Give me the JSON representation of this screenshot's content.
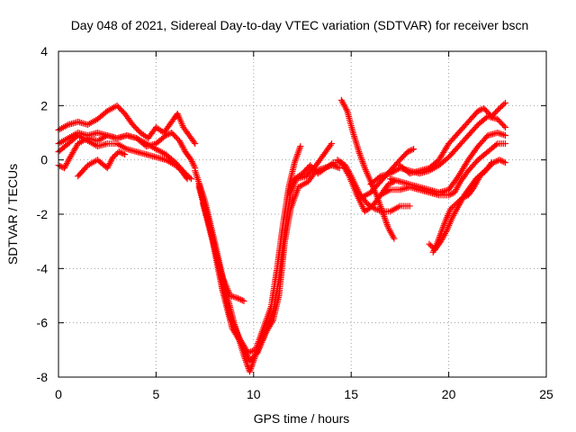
{
  "chart_data": {
    "type": "scatter",
    "title": "Day 048 of 2021, Sidereal Day-to-day VTEC variation (SDTVAR) for receiver bscn",
    "xlabel": "GPS time / hours",
    "ylabel": "SDTVAR / TECUs",
    "xlim": [
      0,
      25
    ],
    "ylim": [
      -8,
      4
    ],
    "xticks": [
      "0",
      "5",
      "10",
      "15",
      "20",
      "25"
    ],
    "yticks": [
      "-8",
      "-6",
      "-4",
      "-2",
      "0",
      "2",
      "4"
    ],
    "grid": true,
    "legend": "none",
    "marker": "+",
    "color": "#ff0000",
    "series": [
      {
        "points": [
          [
            0,
            1.1
          ],
          [
            0.5,
            1.3
          ],
          [
            1,
            1.4
          ],
          [
            1.5,
            1.3
          ],
          [
            2,
            1.5
          ],
          [
            2.5,
            1.8
          ],
          [
            3,
            2.0
          ],
          [
            3.4,
            1.7
          ],
          [
            3.8,
            1.3
          ],
          [
            4.2,
            1.0
          ],
          [
            4.6,
            0.8
          ],
          [
            5,
            1.2
          ],
          [
            5.4,
            1.0
          ],
          [
            5.8,
            1.4
          ],
          [
            6.1,
            1.7
          ],
          [
            6.4,
            1.2
          ],
          [
            6.8,
            0.8
          ],
          [
            7.0,
            0.6
          ]
        ]
      },
      {
        "points": [
          [
            0,
            0.6
          ],
          [
            0.5,
            0.8
          ],
          [
            1,
            1.0
          ],
          [
            1.5,
            0.9
          ],
          [
            2,
            1.0
          ],
          [
            2.5,
            0.9
          ],
          [
            3,
            0.8
          ],
          [
            3.5,
            0.9
          ],
          [
            4,
            0.8
          ],
          [
            4.5,
            0.5
          ],
          [
            5,
            0.6
          ],
          [
            5.5,
            0.9
          ],
          [
            5.8,
            1.0
          ],
          [
            6.2,
            0.7
          ],
          [
            6.5,
            0.3
          ],
          [
            6.8,
            0.0
          ],
          [
            7.0,
            -0.3
          ]
        ]
      },
      {
        "points": [
          [
            0,
            0.3
          ],
          [
            0.5,
            0.6
          ],
          [
            1,
            0.9
          ],
          [
            1.5,
            0.7
          ],
          [
            2,
            0.5
          ],
          [
            2.5,
            0.6
          ],
          [
            3,
            0.6
          ],
          [
            3.5,
            0.4
          ],
          [
            4,
            0.3
          ],
          [
            4.5,
            0.2
          ],
          [
            5,
            0.1
          ],
          [
            5.5,
            0.0
          ],
          [
            6,
            -0.2
          ],
          [
            6.3,
            -0.4
          ],
          [
            6.6,
            -0.7
          ]
        ]
      },
      {
        "points": [
          [
            0,
            -0.2
          ],
          [
            0.3,
            -0.3
          ],
          [
            0.6,
            0.1
          ],
          [
            1.0,
            0.6
          ],
          [
            1.5,
            0.8
          ],
          [
            2,
            0.7
          ],
          [
            2.5,
            0.9
          ],
          [
            3.0,
            0.8
          ],
          [
            3.5,
            0.9
          ],
          [
            4.0,
            0.8
          ],
          [
            4.5,
            0.6
          ],
          [
            5.0,
            0.4
          ],
          [
            5.5,
            0.2
          ],
          [
            6.0,
            -0.1
          ],
          [
            6.5,
            -0.5
          ],
          [
            6.8,
            -0.7
          ]
        ]
      },
      {
        "points": [
          [
            1,
            -0.6
          ],
          [
            1.5,
            -0.2
          ],
          [
            2,
            0.0
          ],
          [
            2.5,
            -0.3
          ],
          [
            2.8,
            0.1
          ],
          [
            3.1,
            0.3
          ],
          [
            3.4,
            0.2
          ]
        ]
      },
      {
        "points": [
          [
            7.0,
            -0.4
          ],
          [
            7.5,
            -1.5
          ],
          [
            8.0,
            -3.0
          ],
          [
            8.5,
            -4.6
          ],
          [
            9.0,
            -6.0
          ],
          [
            9.5,
            -7.2
          ],
          [
            9.8,
            -7.8
          ],
          [
            10.1,
            -7.2
          ],
          [
            10.5,
            -6.6
          ],
          [
            11.0,
            -5.6
          ],
          [
            11.3,
            -4.4
          ],
          [
            11.6,
            -2.6
          ],
          [
            11.9,
            -1.2
          ],
          [
            12.2,
            -0.7
          ],
          [
            12.7,
            -0.6
          ],
          [
            13.2,
            -0.2
          ],
          [
            13.6,
            0.2
          ],
          [
            14.0,
            0.6
          ]
        ]
      },
      {
        "points": [
          [
            7.2,
            -0.9
          ],
          [
            7.6,
            -2.0
          ],
          [
            8.0,
            -3.2
          ],
          [
            8.4,
            -4.3
          ],
          [
            8.8,
            -5.0
          ],
          [
            9.2,
            -5.1
          ],
          [
            9.5,
            -5.2
          ]
        ]
      },
      {
        "points": [
          [
            7.2,
            -1.0
          ],
          [
            7.8,
            -2.6
          ],
          [
            8.3,
            -4.2
          ],
          [
            8.8,
            -5.8
          ],
          [
            9.3,
            -6.6
          ],
          [
            9.7,
            -7.1
          ],
          [
            10.1,
            -7.0
          ],
          [
            10.5,
            -6.2
          ],
          [
            10.9,
            -5.4
          ],
          [
            11.2,
            -4.0
          ],
          [
            11.5,
            -2.4
          ],
          [
            11.8,
            -1.0
          ],
          [
            12.1,
            -0.1
          ],
          [
            12.4,
            0.5
          ]
        ]
      },
      {
        "points": [
          [
            7.4,
            -1.6
          ],
          [
            7.9,
            -3.0
          ],
          [
            8.4,
            -4.8
          ],
          [
            8.9,
            -6.2
          ],
          [
            9.4,
            -6.8
          ],
          [
            9.8,
            -7.4
          ],
          [
            10.2,
            -7.1
          ],
          [
            10.6,
            -6.4
          ],
          [
            11.0,
            -5.9
          ],
          [
            11.3,
            -5.0
          ],
          [
            11.6,
            -3.0
          ],
          [
            11.9,
            -1.8
          ],
          [
            12.3,
            -1.0
          ],
          [
            12.8,
            -0.8
          ],
          [
            13.2,
            -0.4
          ],
          [
            13.6,
            -0.3
          ],
          [
            14.0,
            -0.2
          ],
          [
            14.4,
            -0.3
          ]
        ]
      },
      {
        "points": [
          [
            11.8,
            -1.2
          ],
          [
            12.1,
            -0.7
          ],
          [
            12.5,
            -0.5
          ],
          [
            12.9,
            -0.2
          ],
          [
            13.3,
            -0.5
          ],
          [
            13.7,
            -0.3
          ],
          [
            14.1,
            -0.1
          ],
          [
            14.5,
            -0.1
          ],
          [
            14.9,
            -0.6
          ],
          [
            15.3,
            -1.3
          ],
          [
            15.7,
            -1.9
          ],
          [
            16.1,
            -1.7
          ],
          [
            16.5,
            -1.3
          ],
          [
            16.9,
            -0.9
          ],
          [
            17.2,
            -0.8
          ]
        ]
      },
      {
        "points": [
          [
            14.5,
            2.2
          ],
          [
            14.8,
            1.8
          ],
          [
            15.1,
            1.0
          ],
          [
            15.4,
            0.3
          ],
          [
            15.7,
            -0.3
          ],
          [
            16.0,
            -0.8
          ],
          [
            16.3,
            -1.3
          ],
          [
            16.6,
            -1.9
          ],
          [
            16.9,
            -2.5
          ],
          [
            17.2,
            -2.9
          ]
        ]
      },
      {
        "points": [
          [
            14.3,
            0.0
          ],
          [
            14.7,
            -0.2
          ],
          [
            15.0,
            -0.6
          ],
          [
            15.4,
            -1.2
          ],
          [
            15.8,
            -1.6
          ],
          [
            16.2,
            -1.8
          ],
          [
            16.6,
            -1.9
          ],
          [
            17.0,
            -1.9
          ],
          [
            17.5,
            -1.7
          ],
          [
            18.0,
            -1.7
          ]
        ]
      },
      {
        "points": [
          [
            15.5,
            -1.4
          ],
          [
            16.0,
            -1.2
          ],
          [
            16.5,
            -0.8
          ],
          [
            17.0,
            -0.4
          ],
          [
            17.5,
            0.0
          ],
          [
            17.9,
            0.3
          ],
          [
            18.2,
            0.4
          ]
        ]
      },
      {
        "points": [
          [
            16.0,
            -0.9
          ],
          [
            16.5,
            -0.6
          ],
          [
            17.0,
            -0.5
          ],
          [
            17.5,
            -0.3
          ],
          [
            18.0,
            -0.4
          ],
          [
            18.5,
            -0.5
          ],
          [
            19.0,
            -0.4
          ],
          [
            19.5,
            -0.2
          ],
          [
            20.0,
            0.1
          ],
          [
            20.5,
            0.5
          ],
          [
            21.0,
            0.9
          ],
          [
            21.5,
            1.3
          ],
          [
            22.0,
            1.6
          ],
          [
            22.5,
            1.5
          ],
          [
            22.9,
            1.2
          ]
        ]
      },
      {
        "points": [
          [
            16.5,
            -1.3
          ],
          [
            17.0,
            -1.1
          ],
          [
            17.5,
            -1.1
          ],
          [
            18.0,
            -1.0
          ],
          [
            18.5,
            -1.1
          ],
          [
            19.0,
            -1.2
          ],
          [
            19.5,
            -1.3
          ],
          [
            20.0,
            -1.3
          ],
          [
            20.3,
            -1.2
          ],
          [
            20.6,
            -0.8
          ],
          [
            21.0,
            -0.4
          ],
          [
            21.5,
            0.0
          ],
          [
            22.0,
            0.3
          ],
          [
            22.5,
            0.6
          ],
          [
            22.9,
            0.6
          ]
        ]
      },
      {
        "points": [
          [
            17.0,
            -0.7
          ],
          [
            17.5,
            -0.8
          ],
          [
            18.0,
            -0.9
          ],
          [
            18.5,
            -1.0
          ],
          [
            19.0,
            -1.1
          ],
          [
            19.5,
            -1.2
          ],
          [
            20.0,
            -1.1
          ],
          [
            20.5,
            -0.6
          ],
          [
            21.0,
            0.0
          ],
          [
            21.5,
            0.5
          ],
          [
            22.0,
            0.9
          ],
          [
            22.5,
            1.0
          ],
          [
            22.9,
            0.9
          ]
        ]
      },
      {
        "points": [
          [
            17.5,
            -0.2
          ],
          [
            18.0,
            -0.5
          ],
          [
            18.5,
            -0.4
          ],
          [
            19.0,
            -0.3
          ],
          [
            19.5,
            0.0
          ],
          [
            20.0,
            0.6
          ],
          [
            20.5,
            1.0
          ],
          [
            21.0,
            1.4
          ],
          [
            21.5,
            1.8
          ],
          [
            21.8,
            1.9
          ],
          [
            22.2,
            1.6
          ],
          [
            22.6,
            1.9
          ],
          [
            22.9,
            2.1
          ]
        ]
      },
      {
        "points": [
          [
            19.0,
            -3.1
          ],
          [
            19.3,
            -3.3
          ],
          [
            19.6,
            -3.0
          ],
          [
            19.9,
            -2.6
          ],
          [
            20.2,
            -2.1
          ],
          [
            20.5,
            -1.7
          ],
          [
            20.8,
            -1.3
          ],
          [
            21.1,
            -1.0
          ],
          [
            21.4,
            -0.7
          ],
          [
            21.7,
            -0.5
          ],
          [
            22.0,
            -0.3
          ],
          [
            22.3,
            -0.1
          ],
          [
            22.6,
            0.0
          ],
          [
            22.9,
            -0.1
          ]
        ]
      },
      {
        "points": [
          [
            19.2,
            -3.4
          ],
          [
            19.5,
            -2.9
          ],
          [
            19.8,
            -2.3
          ],
          [
            20.1,
            -1.8
          ],
          [
            20.4,
            -1.6
          ],
          [
            20.7,
            -1.4
          ],
          [
            21.0,
            -1.3
          ],
          [
            21.3,
            -1.0
          ],
          [
            21.6,
            -0.6
          ],
          [
            21.9,
            -0.4
          ],
          [
            22.2,
            -0.1
          ]
        ]
      }
    ]
  }
}
